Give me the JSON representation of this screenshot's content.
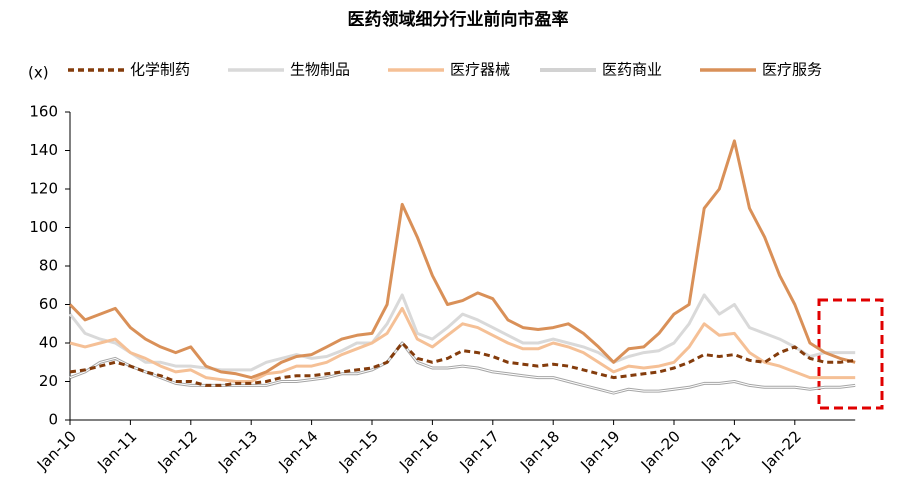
{
  "chart_data": {
    "type": "line",
    "title": "医药领域细分行业前向市盈率",
    "y_label": "(x)",
    "categories": [
      "Jan-10",
      null,
      null,
      null,
      "Jan-11",
      null,
      null,
      null,
      "Jan-12",
      null,
      null,
      null,
      "Jan-13",
      null,
      null,
      null,
      "Jan-14",
      null,
      null,
      null,
      "Jan-15",
      null,
      null,
      null,
      "Jan-16",
      null,
      null,
      null,
      "Jan-17",
      null,
      null,
      null,
      "Jan-18",
      null,
      null,
      null,
      "Jan-19",
      null,
      null,
      null,
      "Jan-20",
      null,
      null,
      null,
      "Jan-21",
      null,
      null,
      null,
      "Jan-22",
      null,
      null,
      null,
      null
    ],
    "ylim": [
      0,
      160
    ],
    "yticks": [
      0,
      20,
      40,
      60,
      80,
      100,
      120,
      140,
      160
    ],
    "series": [
      {
        "name": "化学制药",
        "color": "#843c0c",
        "line_style": "dashed",
        "values": [
          25,
          26,
          28,
          30,
          28,
          25,
          23,
          20,
          20,
          18,
          18,
          19,
          19,
          20,
          22,
          23,
          23,
          24,
          25,
          26,
          27,
          30,
          40,
          32,
          30,
          32,
          36,
          35,
          33,
          30,
          29,
          28,
          29,
          28,
          26,
          24,
          22,
          23,
          24,
          25,
          27,
          30,
          34,
          33,
          34,
          31,
          30,
          35,
          38,
          32,
          30,
          30,
          31
        ]
      },
      {
        "name": "生物制品",
        "color": "#d9d9d9",
        "line_style": "solid",
        "values": [
          55,
          45,
          42,
          40,
          35,
          30,
          30,
          28,
          28,
          27,
          26,
          26,
          26,
          30,
          32,
          34,
          32,
          33,
          36,
          40,
          40,
          50,
          65,
          45,
          42,
          48,
          55,
          52,
          48,
          44,
          40,
          40,
          42,
          40,
          38,
          35,
          30,
          33,
          35,
          36,
          40,
          50,
          65,
          55,
          60,
          48,
          45,
          42,
          38,
          33,
          35,
          35,
          35
        ]
      },
      {
        "name": "医疗器械",
        "color": "#f5c096",
        "line_style": "solid",
        "values": [
          40,
          38,
          40,
          42,
          35,
          32,
          28,
          25,
          26,
          22,
          21,
          20,
          20,
          24,
          25,
          28,
          28,
          30,
          34,
          37,
          40,
          45,
          58,
          42,
          38,
          44,
          50,
          48,
          44,
          40,
          37,
          37,
          40,
          38,
          35,
          30,
          25,
          28,
          27,
          28,
          30,
          38,
          50,
          44,
          45,
          35,
          30,
          28,
          25,
          22,
          22,
          22,
          22
        ]
      },
      {
        "name": "医药商业",
        "color": "#a6a6a6",
        "line_style": "double",
        "values": [
          22,
          25,
          30,
          32,
          28,
          25,
          22,
          19,
          18,
          18,
          18,
          18,
          18,
          18,
          20,
          20,
          21,
          22,
          24,
          24,
          26,
          30,
          40,
          30,
          27,
          27,
          28,
          27,
          25,
          24,
          23,
          22,
          22,
          20,
          18,
          16,
          14,
          16,
          15,
          15,
          16,
          17,
          19,
          19,
          20,
          18,
          17,
          17,
          17,
          16,
          17,
          17,
          18
        ]
      },
      {
        "name": "医疗服务",
        "color": "#d99058",
        "line_style": "solid",
        "values": [
          60,
          52,
          55,
          58,
          48,
          42,
          38,
          35,
          38,
          28,
          25,
          24,
          22,
          25,
          30,
          33,
          34,
          38,
          42,
          44,
          45,
          60,
          112,
          95,
          75,
          60,
          62,
          66,
          63,
          52,
          48,
          47,
          48,
          50,
          45,
          38,
          30,
          37,
          38,
          45,
          55,
          60,
          110,
          120,
          145,
          110,
          95,
          75,
          60,
          40,
          35,
          32,
          30
        ]
      }
    ]
  }
}
